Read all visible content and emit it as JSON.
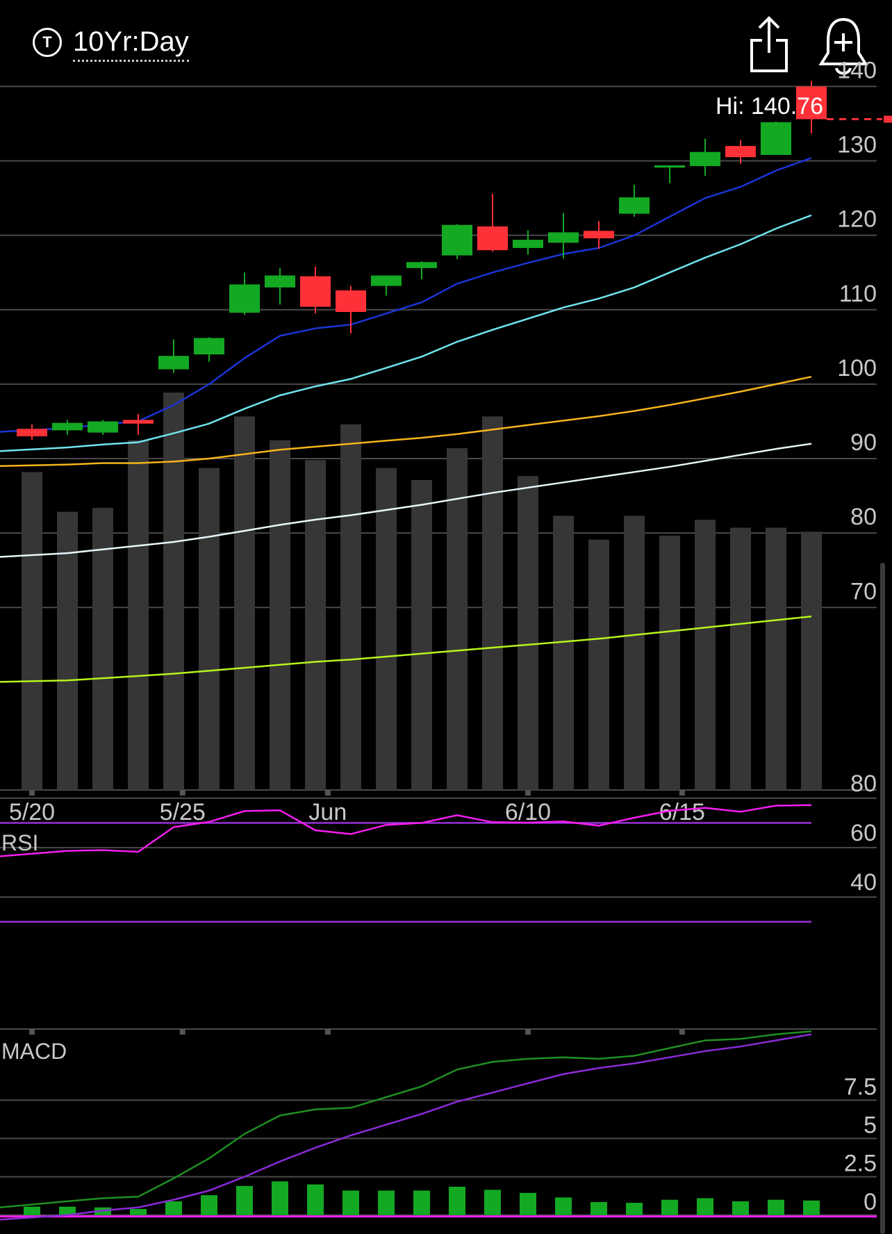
{
  "header": {
    "title": "10Yr:Day",
    "symbol_icon_glyph": "T",
    "share_icon": "share-icon",
    "alert_icon": "bell-plus-icon"
  },
  "colors": {
    "up": "#13a923",
    "down": "#ff3138",
    "volume": "#363636",
    "ma1": "#1c34d6",
    "ma2": "#6fe6ee",
    "ma3": "#f5b51b",
    "ma4": "#e8f7fb",
    "ma5": "#b6f51c",
    "rsi": "#f51ef0",
    "rsi_bands": "#9a2fd8",
    "macd": "#1f8f22",
    "signal": "#8a2bd8",
    "hist": "#13a923",
    "grid": "#4a4a4a",
    "axis_text": "#c8c8c8"
  },
  "chart_data": {
    "type": "candlestick",
    "hi_label": "Hi: 140.76",
    "last_price": 135.6,
    "price_axis": {
      "ticks": [
        70,
        80,
        90,
        100,
        110,
        120,
        130,
        140
      ],
      "range": [
        62,
        142
      ]
    },
    "date_ticks": [
      {
        "label": "5/20",
        "index": 0
      },
      {
        "label": "5/25",
        "index": 4.25
      },
      {
        "label": "Jun",
        "index": 8.35
      },
      {
        "label": "6/10",
        "index": 14
      },
      {
        "label": "6/15",
        "index": 18.35
      }
    ],
    "candles": [
      {
        "o": 94.0,
        "h": 94.6,
        "l": 92.5,
        "c": 93.0
      },
      {
        "o": 93.8,
        "h": 95.2,
        "l": 93.2,
        "c": 94.8
      },
      {
        "o": 93.5,
        "h": 95.2,
        "l": 93.2,
        "c": 95.0
      },
      {
        "o": 95.2,
        "h": 96.0,
        "l": 93.2,
        "c": 94.7
      },
      {
        "o": 102.0,
        "h": 106.0,
        "l": 101.5,
        "c": 103.8
      },
      {
        "o": 104.0,
        "h": 106.3,
        "l": 103.0,
        "c": 106.2
      },
      {
        "o": 109.6,
        "h": 115.0,
        "l": 109.3,
        "c": 113.4
      },
      {
        "o": 113.0,
        "h": 115.6,
        "l": 110.7,
        "c": 114.6
      },
      {
        "o": 114.5,
        "h": 115.8,
        "l": 109.5,
        "c": 110.4
      },
      {
        "o": 112.6,
        "h": 113.2,
        "l": 106.8,
        "c": 109.7
      },
      {
        "o": 113.2,
        "h": 114.2,
        "l": 111.9,
        "c": 114.6
      },
      {
        "o": 115.6,
        "h": 116.5,
        "l": 114.1,
        "c": 116.4
      },
      {
        "o": 117.3,
        "h": 121.5,
        "l": 116.8,
        "c": 121.4
      },
      {
        "o": 121.2,
        "h": 125.6,
        "l": 117.8,
        "c": 118.0
      },
      {
        "o": 118.3,
        "h": 120.7,
        "l": 117.4,
        "c": 119.4
      },
      {
        "o": 119.0,
        "h": 123.0,
        "l": 116.9,
        "c": 120.4
      },
      {
        "o": 120.6,
        "h": 121.9,
        "l": 118.2,
        "c": 119.6
      },
      {
        "o": 122.9,
        "h": 126.8,
        "l": 122.5,
        "c": 125.1
      },
      {
        "o": 129.1,
        "h": 129.2,
        "l": 127.0,
        "c": 129.4
      },
      {
        "o": 129.3,
        "h": 133.0,
        "l": 128.0,
        "c": 131.2
      },
      {
        "o": 132.0,
        "h": 132.8,
        "l": 129.6,
        "c": 130.5
      },
      {
        "o": 130.8,
        "h": 135.3,
        "l": 130.8,
        "c": 135.2
      },
      {
        "o": 140.0,
        "h": 140.76,
        "l": 133.7,
        "c": 135.6
      }
    ],
    "volume": [
      80,
      70,
      71,
      88,
      100,
      81,
      94,
      88,
      83,
      92,
      81,
      78,
      86,
      94,
      79,
      69,
      63,
      69,
      64,
      68,
      66,
      66,
      65
    ],
    "ma1": [
      93.6,
      94.1,
      94.6,
      95.0,
      97.2,
      100.0,
      103.5,
      106.5,
      107.5,
      108.0,
      109.5,
      111.0,
      113.5,
      115.0,
      116.3,
      117.5,
      118.3,
      120.0,
      122.5,
      125.0,
      126.5,
      128.7,
      130.4
    ],
    "ma2": [
      91.0,
      91.5,
      91.9,
      92.2,
      93.4,
      94.7,
      96.7,
      98.5,
      99.7,
      100.7,
      102.2,
      103.7,
      105.7,
      107.3,
      108.8,
      110.3,
      111.5,
      113.0,
      115.0,
      117.0,
      118.8,
      120.9,
      122.7
    ],
    "ma3": [
      89.0,
      89.2,
      89.4,
      89.4,
      89.6,
      90.0,
      90.6,
      91.2,
      91.6,
      92.0,
      92.4,
      92.8,
      93.3,
      93.9,
      94.5,
      95.1,
      95.7,
      96.4,
      97.2,
      98.1,
      99.0,
      100.0,
      101.0
    ],
    "ma4": [
      76.8,
      77.3,
      77.8,
      78.3,
      78.8,
      79.5,
      80.3,
      81.1,
      81.8,
      82.4,
      83.1,
      83.8,
      84.6,
      85.4,
      86.1,
      86.8,
      87.5,
      88.2,
      88.9,
      89.7,
      90.5,
      91.3,
      92.0
    ],
    "ma5": [
      60.0,
      60.2,
      60.5,
      60.8,
      61.1,
      61.5,
      61.9,
      62.3,
      62.7,
      63.0,
      63.4,
      63.8,
      64.2,
      64.6,
      65.0,
      65.4,
      65.8,
      66.3,
      66.8,
      67.3,
      67.8,
      68.3,
      68.8
    ],
    "rsi": {
      "label": "RSI",
      "ticks": [
        40,
        60,
        80
      ],
      "range": [
        15,
        85
      ],
      "values": [
        56.5,
        58.7,
        59.0,
        58.3,
        68.3,
        70.4,
        74.8,
        75.1,
        67.0,
        65.5,
        69.2,
        70.0,
        73.1,
        70.3,
        70.1,
        70.6,
        68.9,
        72.1,
        74.9,
        76.1,
        74.5,
        77.0,
        77.2
      ],
      "upper_band": 70,
      "lower_band": 30
    },
    "macd": {
      "label": "MACD",
      "ticks": [
        0,
        2.5,
        5,
        7.5
      ],
      "range": [
        -0.6,
        11.6
      ],
      "macd_line": [
        0.5,
        0.9,
        1.1,
        1.2,
        2.4,
        3.7,
        5.3,
        6.5,
        6.9,
        7.0,
        7.7,
        8.4,
        9.5,
        10.0,
        10.2,
        10.3,
        10.2,
        10.4,
        10.9,
        11.4,
        11.5,
        11.8,
        12.0
      ],
      "signal_line": [
        -0.3,
        0.0,
        0.3,
        0.5,
        1.0,
        1.6,
        2.5,
        3.5,
        4.4,
        5.2,
        5.9,
        6.6,
        7.4,
        8.0,
        8.6,
        9.2,
        9.6,
        9.9,
        10.3,
        10.7,
        11.0,
        11.4,
        11.8
      ],
      "histogram": [
        0.55,
        0.55,
        0.5,
        0.4,
        0.9,
        1.3,
        1.9,
        2.2,
        2.0,
        1.6,
        1.6,
        1.6,
        1.85,
        1.65,
        1.45,
        1.15,
        0.85,
        0.8,
        1.0,
        1.1,
        0.9,
        1.0,
        0.95
      ]
    }
  }
}
